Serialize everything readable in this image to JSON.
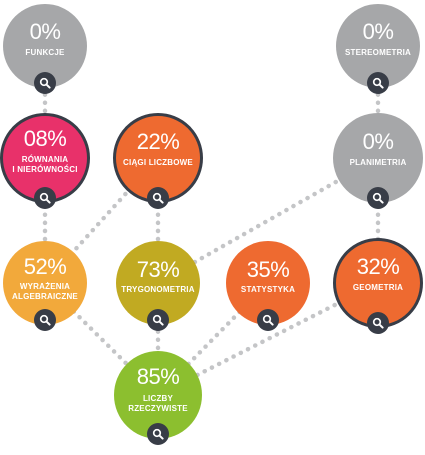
{
  "nodes": [
    {
      "id": "funkcje",
      "pct": "0%",
      "label": "FUNKCJE",
      "color": "#a6a7a9",
      "ring": false
    },
    {
      "id": "stereometria",
      "pct": "0%",
      "label": "STEREOMETRIA",
      "color": "#a6a7a9",
      "ring": false
    },
    {
      "id": "rownania",
      "pct": "08%",
      "label": "RÓWNANIA\nI NIERÓWNOŚCI",
      "color": "#e8316a",
      "ring": true
    },
    {
      "id": "ciagi",
      "pct": "22%",
      "label": "CIĄGI LICZBOWE",
      "color": "#ee6a30",
      "ring": true
    },
    {
      "id": "planimetria",
      "pct": "0%",
      "label": "PLANIMETRIA",
      "color": "#a6a7a9",
      "ring": false
    },
    {
      "id": "wyrazenia",
      "pct": "52%",
      "label": "WYRAŻENIA\nALGEBRAICZNE",
      "color": "#f2a93b",
      "ring": false
    },
    {
      "id": "trygonometria",
      "pct": "73%",
      "label": "TRYGONOMETRIA",
      "color": "#c1aa22",
      "ring": false
    },
    {
      "id": "statystyka",
      "pct": "35%",
      "label": "STATYSTYKA",
      "color": "#ee6a30",
      "ring": false
    },
    {
      "id": "geometria",
      "pct": "32%",
      "label": "GEOMETRIA",
      "color": "#ee6a30",
      "ring": true
    },
    {
      "id": "liczby",
      "pct": "85%",
      "label": "LICZBY\nRZECZYWISTE",
      "color": "#8cbf2f",
      "ring": false
    }
  ],
  "links": [
    [
      "funkcje",
      "rownania"
    ],
    [
      "stereometria",
      "planimetria"
    ],
    [
      "rownania",
      "wyrazenia"
    ],
    [
      "ciagi",
      "wyrazenia"
    ],
    [
      "ciagi",
      "trygonometria"
    ],
    [
      "planimetria",
      "trygonometria"
    ],
    [
      "planimetria",
      "geometria"
    ],
    [
      "wyrazenia",
      "liczby"
    ],
    [
      "trygonometria",
      "liczby"
    ],
    [
      "statystyka",
      "liczby"
    ],
    [
      "geometria",
      "liczby"
    ]
  ],
  "search_icon": "magnifier-icon",
  "colors": {
    "dots": "#c4c5c7",
    "button": "#383d47",
    "ring": "#383d47"
  }
}
